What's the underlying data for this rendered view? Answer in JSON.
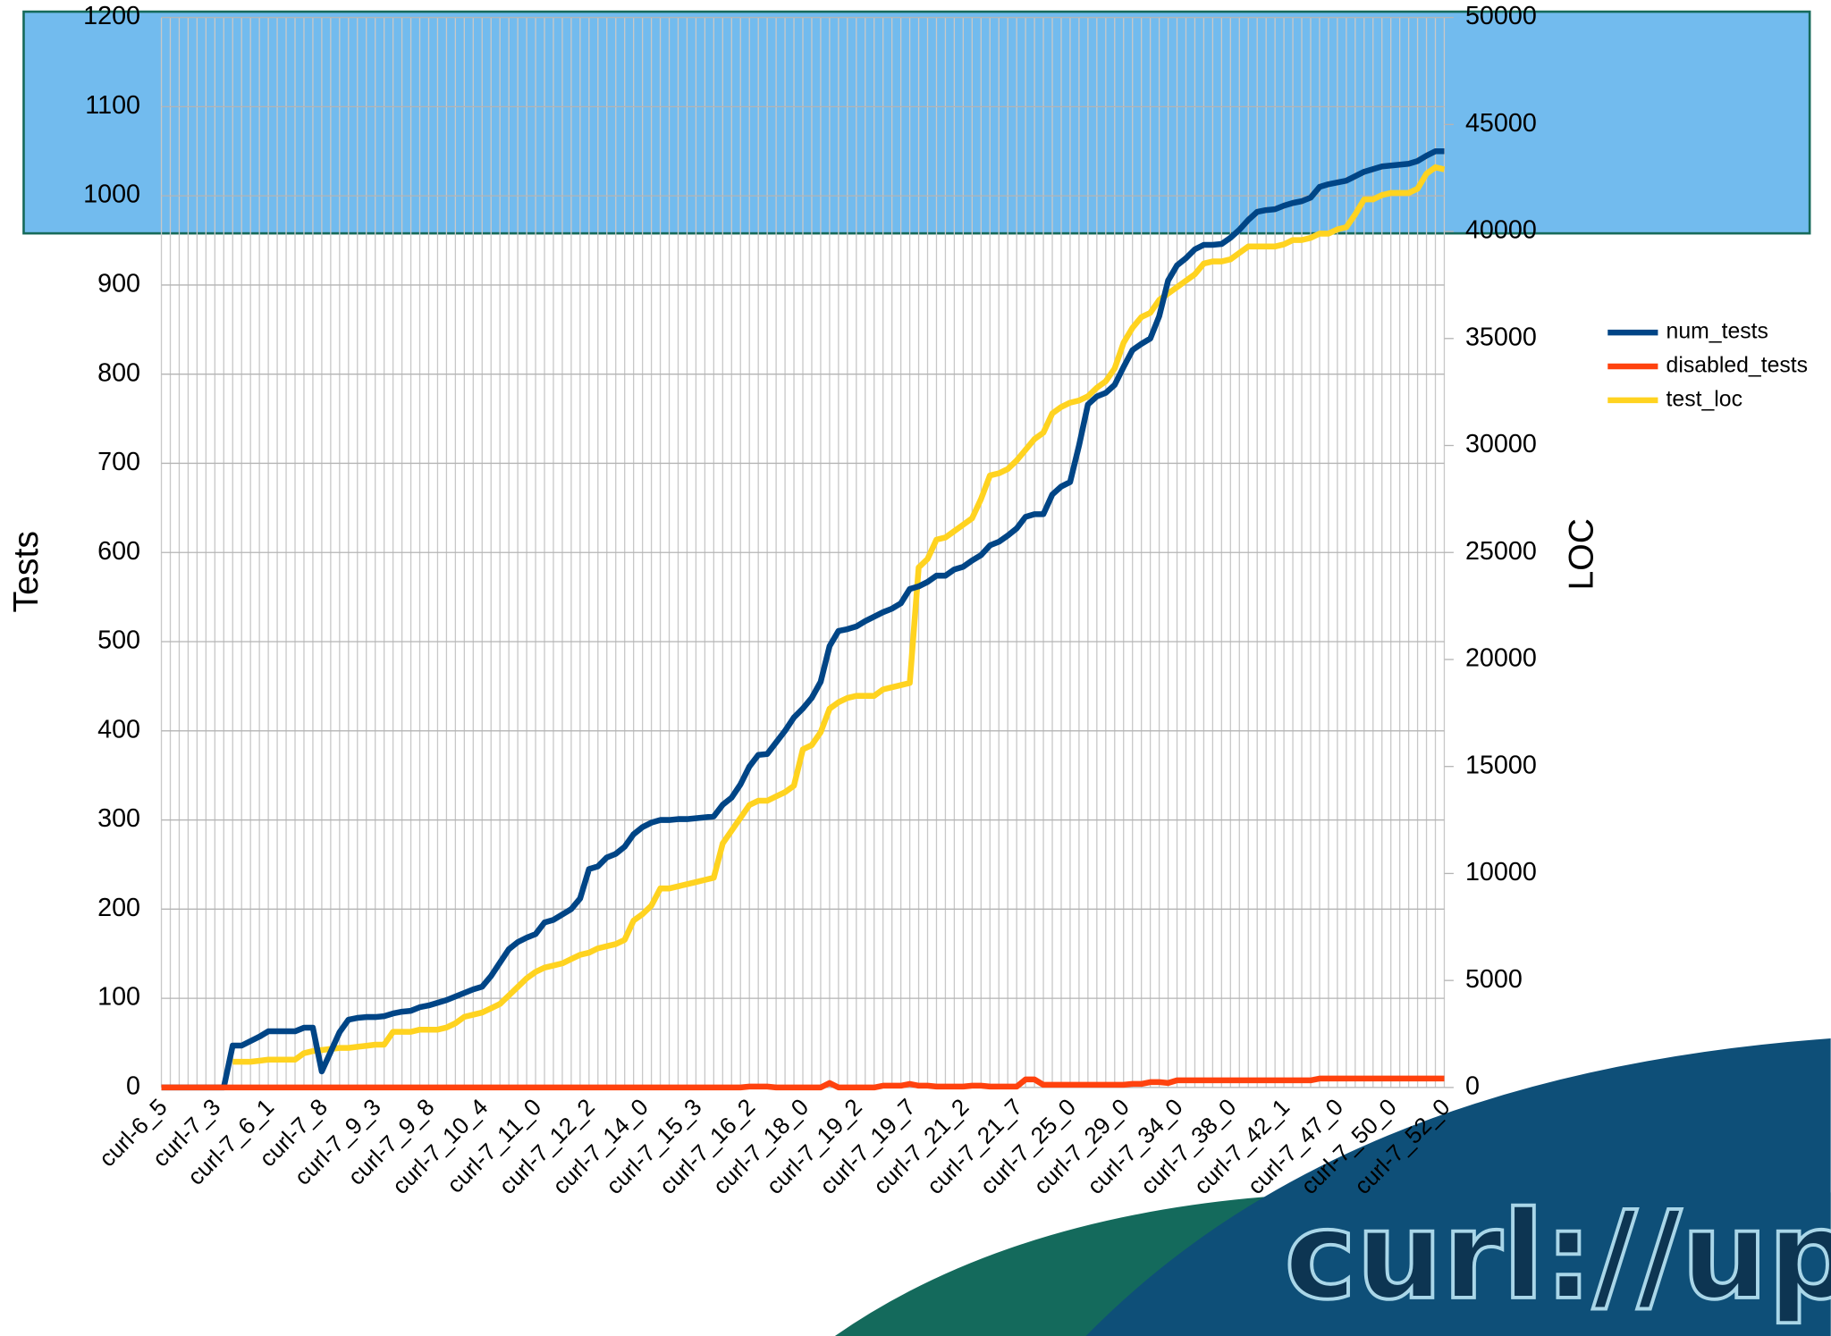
{
  "chart_data": {
    "type": "line",
    "categories": [
      "curl-6_5",
      null,
      null,
      null,
      null,
      null,
      "curl-7_3",
      null,
      null,
      null,
      null,
      null,
      "curl-7_6_1",
      null,
      null,
      null,
      null,
      null,
      "curl-7_8",
      null,
      null,
      null,
      null,
      null,
      "curl-7_9_3",
      null,
      null,
      null,
      null,
      null,
      "curl-7_9_8",
      null,
      null,
      null,
      null,
      null,
      "curl-7_10_4",
      null,
      null,
      null,
      null,
      null,
      "curl-7_11_0",
      null,
      null,
      null,
      null,
      null,
      "curl-7_12_2",
      null,
      null,
      null,
      null,
      null,
      "curl-7_14_0",
      null,
      null,
      null,
      null,
      null,
      "curl-7_15_3",
      null,
      null,
      null,
      null,
      null,
      "curl-7_16_2",
      null,
      null,
      null,
      null,
      null,
      "curl-7_18_0",
      null,
      null,
      null,
      null,
      null,
      "curl-7_19_2",
      null,
      null,
      null,
      null,
      null,
      "curl-7_19_7",
      null,
      null,
      null,
      null,
      null,
      "curl-7_21_2",
      null,
      null,
      null,
      null,
      null,
      "curl-7_21_7",
      null,
      null,
      null,
      null,
      null,
      "curl-7_25_0",
      null,
      null,
      null,
      null,
      null,
      "curl-7_29_0",
      null,
      null,
      null,
      null,
      null,
      "curl-7_34_0",
      null,
      null,
      null,
      null,
      null,
      "curl-7_38_0",
      null,
      null,
      null,
      null,
      null,
      "curl-7_42_1",
      null,
      null,
      null,
      null,
      null,
      "curl-7_47_0",
      null,
      null,
      null,
      null,
      null,
      "curl-7_50_0",
      null,
      null,
      null,
      null,
      null,
      "curl-7_52_0"
    ],
    "series": [
      {
        "name": "num_tests",
        "color": "#004586",
        "values": [
          0,
          0,
          0,
          0,
          0,
          0,
          0,
          0,
          47,
          47,
          52,
          57,
          63,
          63,
          63,
          63,
          67,
          67,
          18,
          40,
          62,
          76,
          78,
          79,
          79,
          80,
          83,
          85,
          86,
          90,
          92,
          95,
          98,
          102,
          106,
          110,
          113,
          125,
          140,
          155,
          163,
          168,
          172,
          185,
          188,
          194,
          200,
          212,
          245,
          248,
          258,
          262,
          270,
          284,
          292,
          297,
          300,
          300,
          301,
          301,
          302,
          303,
          304,
          317,
          325,
          340,
          360,
          373,
          374,
          387,
          400,
          415,
          425,
          437,
          455,
          495,
          512,
          514,
          517,
          523,
          528,
          533,
          537,
          543,
          559,
          562,
          567,
          574,
          574,
          581,
          584,
          591,
          597,
          608,
          612,
          619,
          627,
          640,
          643,
          643,
          665,
          674,
          679,
          720,
          766,
          775,
          779,
          788,
          808,
          827,
          834,
          840,
          865,
          905,
          922,
          930,
          940,
          945,
          945,
          946,
          953,
          962,
          973,
          982,
          984,
          985,
          989,
          992,
          994,
          998,
          1010,
          1013,
          1015,
          1017,
          1022,
          1027,
          1030,
          1033,
          1034,
          1035,
          1036,
          1039,
          1045,
          1050,
          1050
        ]
      },
      {
        "name": "disabled_tests",
        "color": "#ff420e",
        "values": [
          0,
          0,
          0,
          0,
          0,
          0,
          0,
          0,
          0,
          0,
          0,
          0,
          0,
          0,
          0,
          0,
          0,
          0,
          0,
          0,
          0,
          0,
          0,
          0,
          0,
          0,
          0,
          0,
          0,
          0,
          0,
          0,
          0,
          0,
          0,
          0,
          0,
          0,
          0,
          0,
          0,
          0,
          0,
          0,
          0,
          0,
          0,
          0,
          0,
          0,
          0,
          0,
          0,
          0,
          0,
          0,
          0,
          0,
          0,
          0,
          0,
          0,
          0,
          0,
          0,
          0,
          1,
          1,
          1,
          0,
          0,
          0,
          0,
          0,
          0,
          5,
          0,
          0,
          0,
          0,
          0,
          2,
          2,
          2,
          4,
          2,
          2,
          1,
          1,
          1,
          1,
          2,
          2,
          1,
          1,
          1,
          1,
          9,
          9,
          3,
          3,
          3,
          3,
          3,
          3,
          3,
          3,
          3,
          3,
          4,
          4,
          6,
          6,
          5,
          8,
          8,
          8,
          8,
          8,
          8,
          8,
          8,
          8,
          8,
          8,
          8,
          8,
          8,
          8,
          8,
          10,
          10,
          10,
          10,
          10,
          10,
          10,
          10,
          10,
          10,
          10,
          10,
          10,
          10,
          10
        ]
      },
      {
        "name": "test_loc",
        "color": "#ffd320",
        "axis": "y2",
        "values": [
          null,
          null,
          null,
          null,
          null,
          null,
          null,
          null,
          1200,
          1200,
          1200,
          1250,
          1300,
          1300,
          1300,
          1300,
          1600,
          1700,
          1750,
          1800,
          1850,
          1850,
          1900,
          1950,
          2000,
          2000,
          2600,
          2600,
          2600,
          2700,
          2700,
          2700,
          2800,
          3000,
          3300,
          3400,
          3500,
          3700,
          3900,
          4300,
          4700,
          5100,
          5400,
          5600,
          5700,
          5800,
          6000,
          6200,
          6300,
          6500,
          6600,
          6700,
          6900,
          7800,
          8100,
          8500,
          9300,
          9300,
          9400,
          9500,
          9600,
          9700,
          9800,
          11400,
          12000,
          12600,
          13200,
          13400,
          13400,
          13600,
          13800,
          14100,
          15800,
          16000,
          16600,
          17700,
          18000,
          18200,
          18300,
          18300,
          18300,
          18600,
          18700,
          18800,
          18900,
          24300,
          24700,
          25600,
          25700,
          26000,
          26300,
          26600,
          27500,
          28600,
          28700,
          28900,
          29300,
          29800,
          30300,
          30600,
          31500,
          31800,
          32000,
          32100,
          32300,
          32700,
          33000,
          33600,
          34800,
          35500,
          36000,
          36200,
          36800,
          37100,
          37400,
          37700,
          38000,
          38500,
          38600,
          38600,
          38700,
          39000,
          39300,
          39300,
          39300,
          39300,
          39400,
          39600,
          39600,
          39700,
          39900,
          39900,
          40100,
          40200,
          40800,
          41500,
          41500,
          41700,
          41800,
          41800,
          41800,
          42000,
          42700,
          43000,
          42900
        ]
      }
    ],
    "ylabel": "Tests",
    "y2label": "LOC",
    "ylim": [
      0,
      1200
    ],
    "yticks": [
      0,
      100,
      200,
      300,
      400,
      500,
      600,
      700,
      800,
      900,
      1000,
      1100,
      1200
    ],
    "y2lim": [
      0,
      50000
    ],
    "y2ticks": [
      0,
      5000,
      10000,
      15000,
      20000,
      25000,
      30000,
      35000,
      40000,
      45000,
      50000
    ],
    "grid": true,
    "legend": "right"
  },
  "branding": {
    "logo": "curl://up"
  }
}
